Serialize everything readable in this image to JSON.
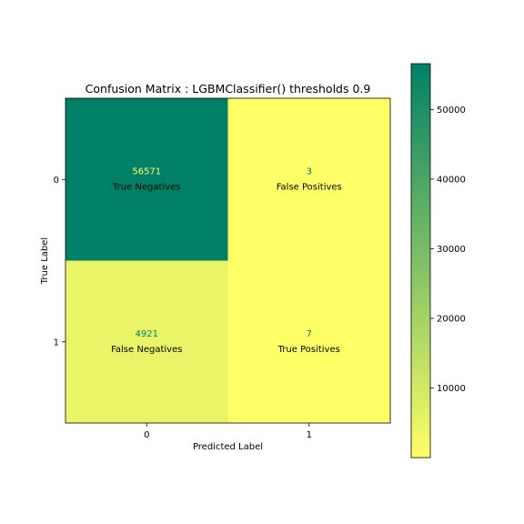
{
  "chart_data": {
    "type": "heatmap",
    "title": "Confusion Matrix : LGBMClassifier() thresholds 0.9",
    "xlabel": "Predicted Label",
    "ylabel": "True Label",
    "x_tick_labels": [
      "0",
      "1"
    ],
    "y_tick_labels": [
      "0",
      "1"
    ],
    "matrix": [
      [
        56571,
        3
      ],
      [
        4921,
        7
      ]
    ],
    "cell_labels": [
      [
        "True Negatives",
        "False Positives"
      ],
      [
        "False Negatives",
        "True Positives"
      ]
    ],
    "colormap": "summer_r",
    "colormap_stops": [
      "#ffff66",
      "#008066"
    ],
    "value_text_colors": {
      "on_light": "#008066",
      "on_dark": "#ffff66"
    },
    "colorbar": {
      "vmin": 3,
      "vmax": 56571,
      "ticks": [
        10000,
        20000,
        30000,
        40000,
        50000
      ],
      "tick_labels": [
        "10000",
        "20000",
        "30000",
        "40000",
        "50000"
      ]
    },
    "grid": false
  }
}
